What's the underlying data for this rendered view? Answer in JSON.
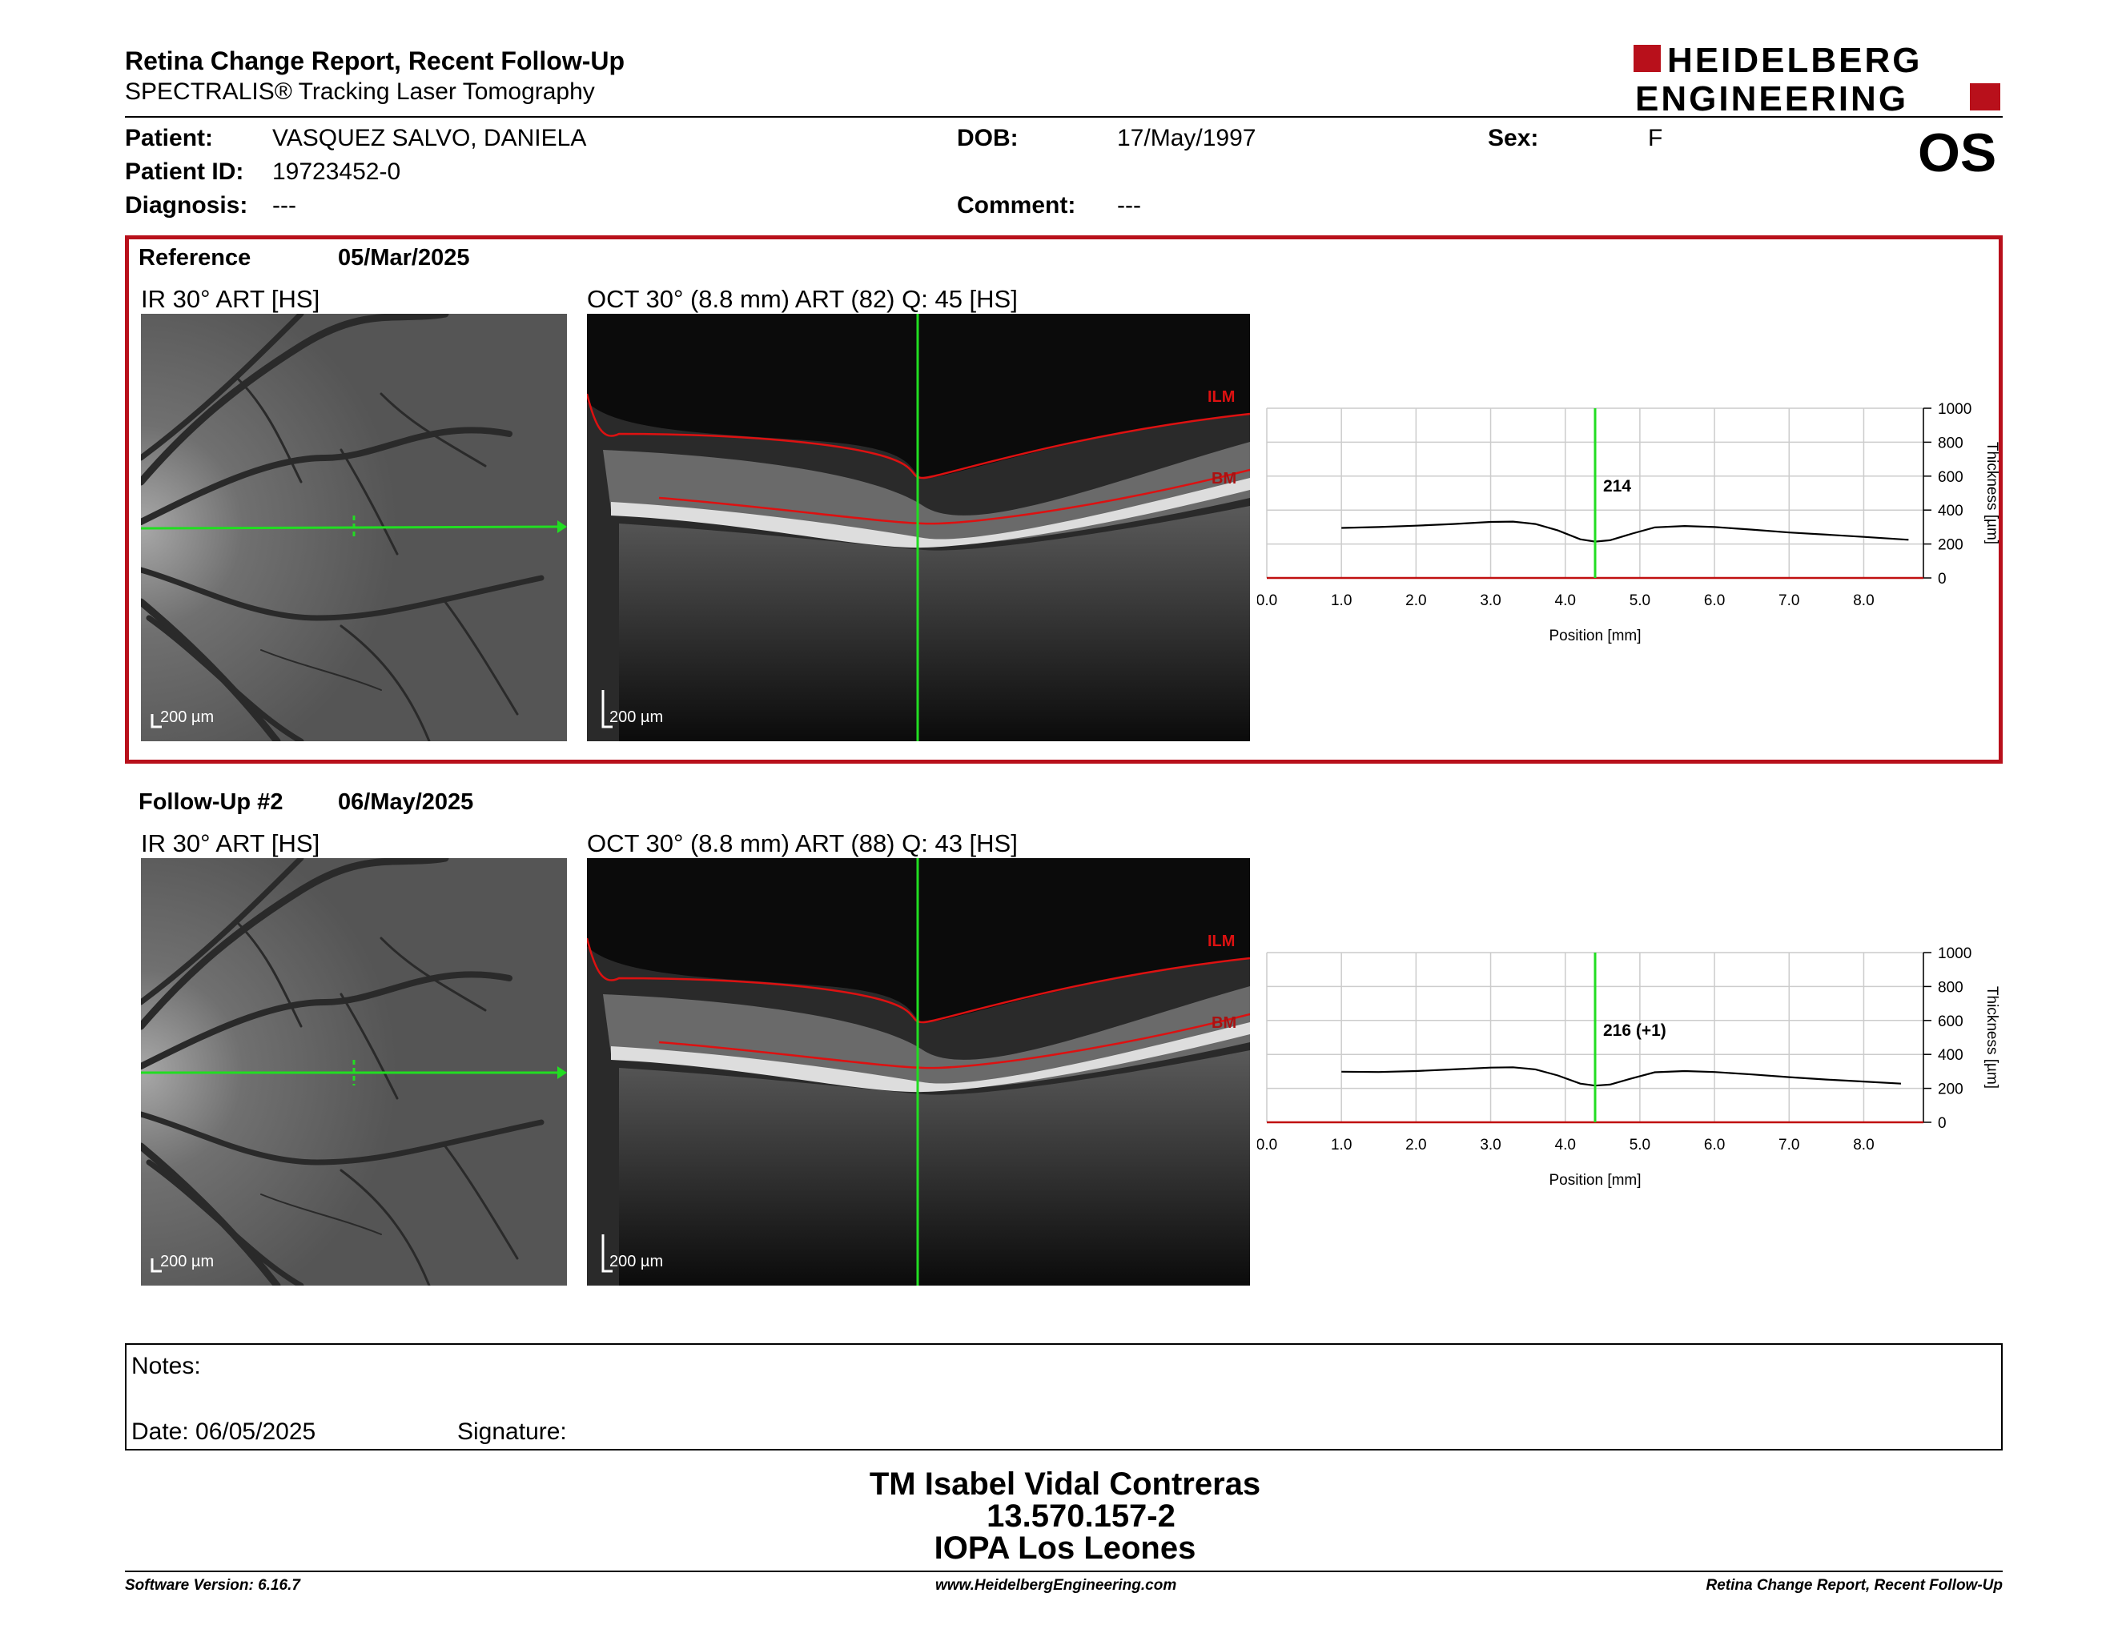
{
  "header": {
    "title": "Retina Change Report, Recent Follow-Up",
    "subtitle": "SPECTRALIS® Tracking Laser Tomography",
    "logo_line1": "HEIDELBERG",
    "logo_line2": "ENGINEERING",
    "eye": "OS"
  },
  "patient": {
    "name_label": "Patient:",
    "name": "VASQUEZ SALVO, DANIELA",
    "id_label": "Patient ID:",
    "id": "19723452-0",
    "diagnosis_label": "Diagnosis:",
    "diagnosis": "---",
    "dob_label": "DOB:",
    "dob": "17/May/1997",
    "comment_label": "Comment:",
    "comment": "---",
    "sex_label": "Sex:",
    "sex": "F"
  },
  "colors": {
    "accent": "#b8101b",
    "scan_line": "#22dd22",
    "layer_line": "#dd1111"
  },
  "exams": [
    {
      "label": "Reference",
      "date": "05/Mar/2025",
      "ir_title": "IR 30° ART [HS]",
      "oct_title": "OCT 30° (8.8 mm) ART (82) Q: 45 [HS]",
      "scale": "200 µm",
      "ilm": "ILM",
      "bm": "BM",
      "readout": "214"
    },
    {
      "label": "Follow-Up #2",
      "date": "06/May/2025",
      "ir_title": "IR 30° ART [HS]",
      "oct_title": "OCT 30° (8.8 mm) ART (88) Q: 43 [HS]",
      "scale": "200 µm",
      "ilm": "ILM",
      "bm": "BM",
      "readout": "216 (+1)"
    }
  ],
  "chart_data": [
    {
      "type": "line",
      "title": "",
      "xlabel": "Position [mm]",
      "ylabel": "Thickness [µm]",
      "xlim": [
        0,
        8.8
      ],
      "ylim": [
        0,
        1000
      ],
      "xticks": [
        "0.0",
        "1.0",
        "2.0",
        "3.0",
        "4.0",
        "5.0",
        "6.0",
        "7.0",
        "8.0"
      ],
      "yticks": [
        "0",
        "200",
        "400",
        "600",
        "800",
        "1000"
      ],
      "cursor_x": 4.4,
      "cursor_label": "214",
      "grid": true,
      "x": [
        1.0,
        1.5,
        2.0,
        2.5,
        3.0,
        3.3,
        3.6,
        3.9,
        4.2,
        4.4,
        4.6,
        4.9,
        5.2,
        5.6,
        6.0,
        6.5,
        7.0,
        7.5,
        8.0,
        8.6
      ],
      "values": [
        295,
        300,
        308,
        318,
        330,
        332,
        318,
        280,
        228,
        214,
        222,
        262,
        298,
        306,
        300,
        285,
        268,
        255,
        242,
        225
      ]
    },
    {
      "type": "line",
      "title": "",
      "xlabel": "Position [mm]",
      "ylabel": "Thickness [µm]",
      "xlim": [
        0,
        8.8
      ],
      "ylim": [
        0,
        1000
      ],
      "xticks": [
        "0.0",
        "1.0",
        "2.0",
        "3.0",
        "4.0",
        "5.0",
        "6.0",
        "7.0",
        "8.0"
      ],
      "yticks": [
        "0",
        "200",
        "400",
        "600",
        "800",
        "1000"
      ],
      "cursor_x": 4.4,
      "cursor_label": "216 (+1)",
      "grid": true,
      "x": [
        1.0,
        1.5,
        2.0,
        2.5,
        3.0,
        3.3,
        3.6,
        3.9,
        4.2,
        4.4,
        4.6,
        4.9,
        5.2,
        5.6,
        6.0,
        6.5,
        7.0,
        7.5,
        8.0,
        8.5
      ],
      "values": [
        298,
        296,
        302,
        312,
        322,
        324,
        312,
        276,
        228,
        216,
        222,
        260,
        295,
        302,
        296,
        282,
        266,
        252,
        240,
        228
      ]
    }
  ],
  "notes": {
    "notes_label": "Notes:",
    "date_label": "Date: 06/05/2025",
    "signature_label": "Signature:"
  },
  "signature_block": {
    "name": "TM Isabel Vidal Contreras",
    "rut": "13.570.157-2",
    "place": "IOPA Los Leones"
  },
  "footer": {
    "software": "Software Version: 6.16.7",
    "website": "www.HeidelbergEngineering.com",
    "report": "Retina Change Report, Recent Follow-Up"
  }
}
